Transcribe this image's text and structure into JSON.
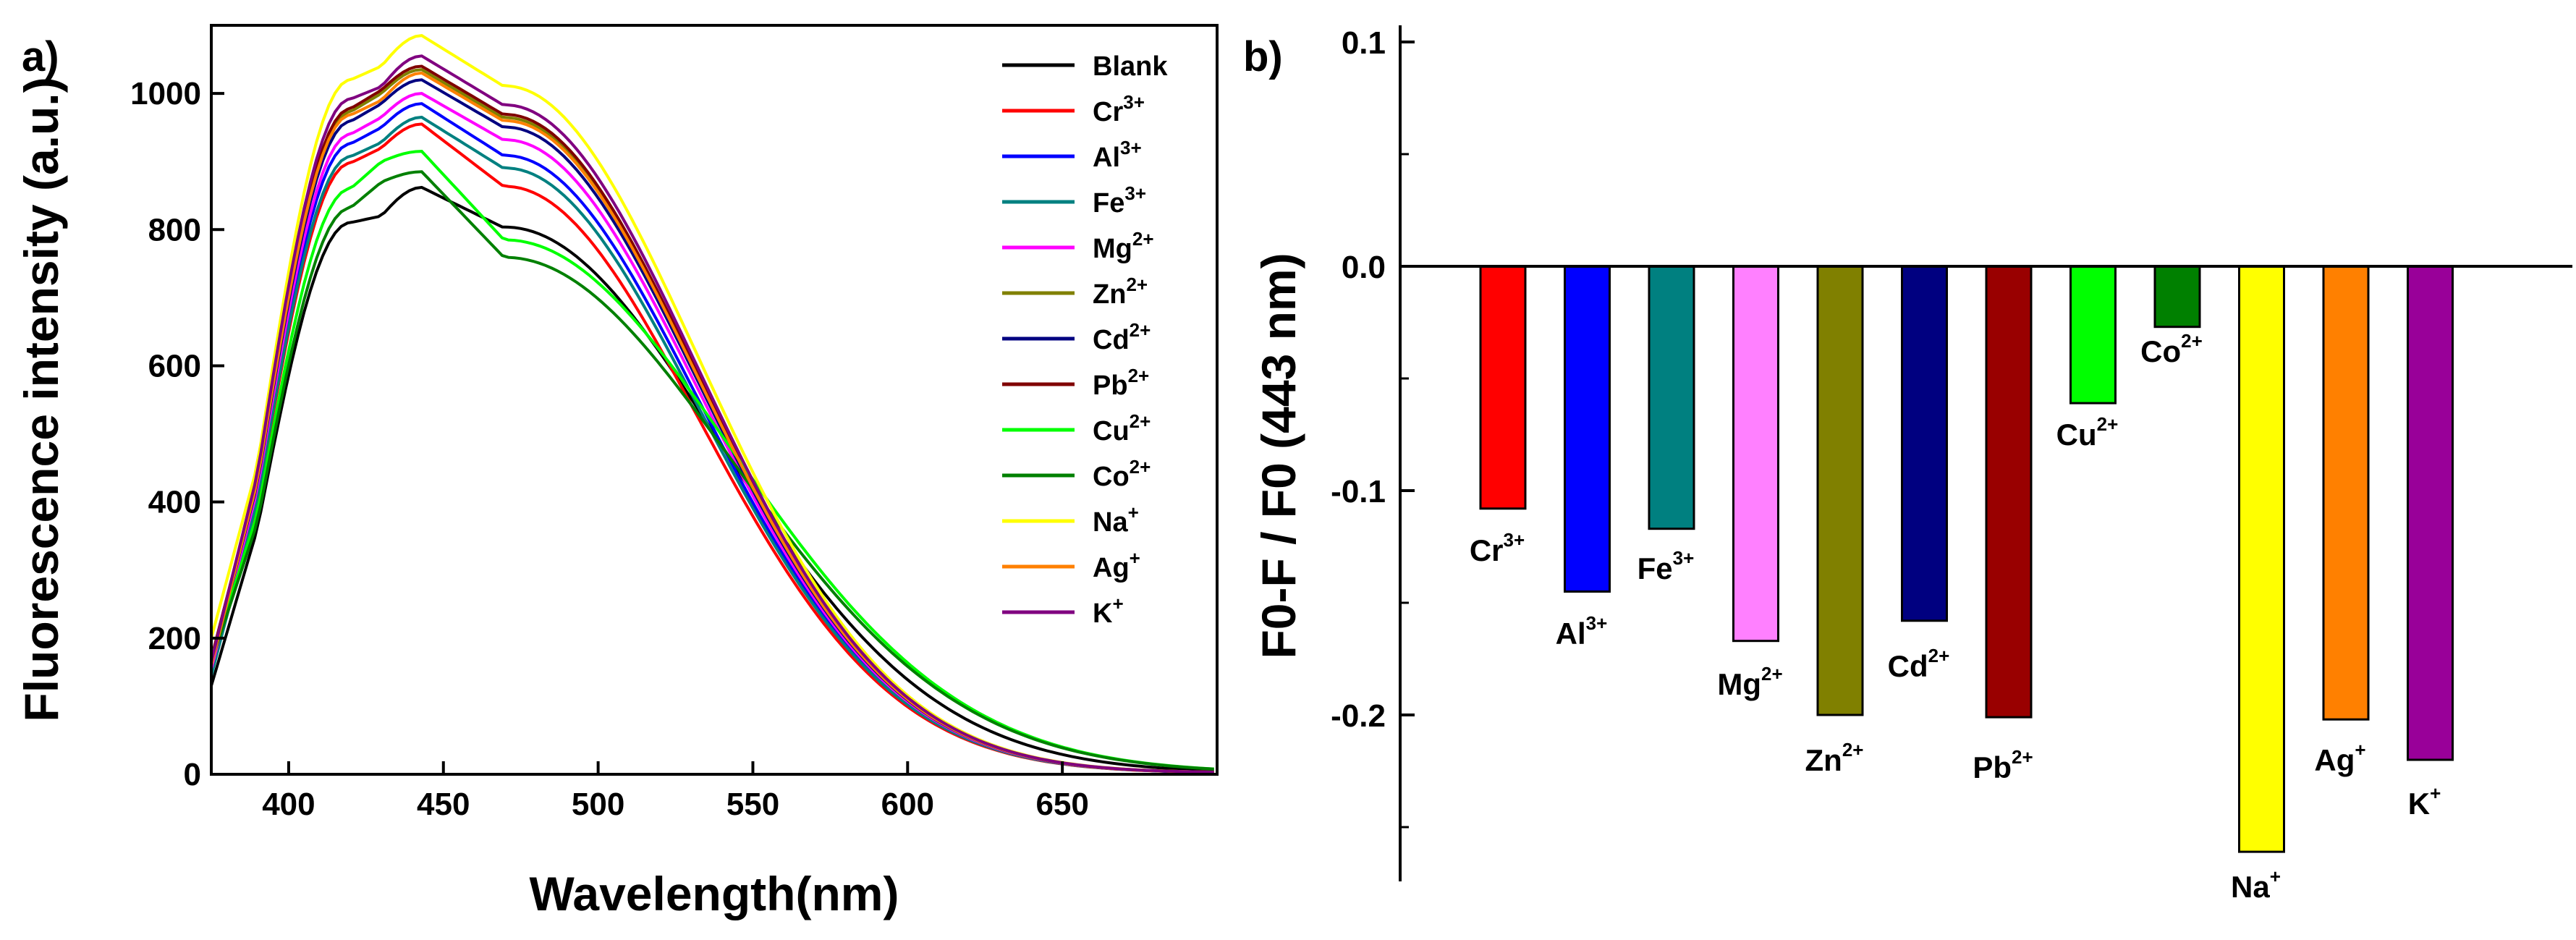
{
  "chart_data": [
    {
      "panel_label": "a)",
      "type": "line",
      "title": "",
      "xlabel": "Wavelength(nm)",
      "ylabel": "Fluorescence intensity (a.u.)",
      "xlim": [
        375,
        700
      ],
      "ylim": [
        0,
        1100
      ],
      "xticks": [
        "400",
        "450",
        "500",
        "550",
        "600",
        "650"
      ],
      "yticks": [
        "0",
        "200",
        "400",
        "600",
        "800",
        "1000"
      ],
      "legend_position": "top-right",
      "series": [
        {
          "name": "Blank",
          "base": "Blank",
          "charge": "",
          "color": "#000000",
          "peak": 862,
          "low": 820,
          "start": 130,
          "hold": 1.0,
          "tail": 0.9
        },
        {
          "name": "Cr3+",
          "base": "Cr",
          "charge": "3+",
          "color": "#ff0000",
          "peak": 955,
          "low": 920,
          "start": 160,
          "hold": 0.97,
          "tail": 1.0
        },
        {
          "name": "Al3+",
          "base": "Al",
          "charge": "3+",
          "color": "#0000ff",
          "peak": 985,
          "low": 950,
          "start": 150,
          "hold": 0.99,
          "tail": 1.0
        },
        {
          "name": "Fe3+",
          "base": "Fe",
          "charge": "3+",
          "color": "#008080",
          "peak": 965,
          "low": 928,
          "start": 145,
          "hold": 0.99,
          "tail": 1.0
        },
        {
          "name": "Mg2+",
          "base": "Mg",
          "charge": "2+",
          "color": "#ff00ff",
          "peak": 1000,
          "low": 965,
          "start": 155,
          "hold": 1.0,
          "tail": 1.0
        },
        {
          "name": "Zn2+",
          "base": "Zn",
          "charge": "2+",
          "color": "#808000",
          "peak": 1035,
          "low": 1000,
          "start": 165,
          "hold": 1.0,
          "tail": 1.0
        },
        {
          "name": "Cd2+",
          "base": "Cd",
          "charge": "2+",
          "color": "#000080",
          "peak": 1020,
          "low": 985,
          "start": 160,
          "hold": 1.0,
          "tail": 1.0
        },
        {
          "name": "Pb2+",
          "base": "Pb",
          "charge": "2+",
          "color": "#800000",
          "peak": 1040,
          "low": 1005,
          "start": 170,
          "hold": 1.0,
          "tail": 1.0
        },
        {
          "name": "Cu2+",
          "base": "Cu",
          "charge": "2+",
          "color": "#00ff00",
          "peak": 915,
          "low": 900,
          "start": 170,
          "hold": 0.92,
          "tail": 0.85
        },
        {
          "name": "Co2+",
          "base": "Co",
          "charge": "2+",
          "color": "#008000",
          "peak": 885,
          "low": 870,
          "start": 165,
          "hold": 0.92,
          "tail": 0.85
        },
        {
          "name": "Na+",
          "base": "Na",
          "charge": "+",
          "color": "#ffff00",
          "peak": 1085,
          "low": 1040,
          "start": 200,
          "hold": 1.0,
          "tail": 1.0
        },
        {
          "name": "Ag+",
          "base": "Ag",
          "charge": "+",
          "color": "#ff8000",
          "peak": 1030,
          "low": 990,
          "start": 160,
          "hold": 1.0,
          "tail": 1.0
        },
        {
          "name": "K+",
          "base": "K",
          "charge": "+",
          "color": "#800080",
          "peak": 1055,
          "low": 1010,
          "start": 165,
          "hold": 1.0,
          "tail": 1.0
        }
      ]
    },
    {
      "panel_label": "b)",
      "type": "bar",
      "title": "",
      "xlabel": "",
      "ylabel": "F0-F / F0 (443 nm)",
      "ylim": [
        -0.27,
        0.1
      ],
      "yticks": [
        "0.1",
        "0.0",
        "-0.1",
        "-0.2"
      ],
      "categories": [
        "Cr3+",
        "Al3+",
        "Fe3+",
        "Mg2+",
        "Zn2+",
        "Cd2+",
        "Pb2+",
        "Cu2+",
        "Co2+",
        "Na+",
        "Ag+",
        "K+"
      ],
      "values": [
        -0.108,
        -0.145,
        -0.117,
        -0.167,
        -0.2,
        -0.158,
        -0.201,
        -0.061,
        -0.027,
        -0.261,
        -0.202,
        -0.22
      ],
      "bars": [
        {
          "base": "Cr",
          "charge": "3+",
          "value": -0.108,
          "color": "#ff0000"
        },
        {
          "base": "Al",
          "charge": "3+",
          "value": -0.145,
          "color": "#0000ff"
        },
        {
          "base": "Fe",
          "charge": "3+",
          "value": -0.117,
          "color": "#008080"
        },
        {
          "base": "Mg",
          "charge": "2+",
          "value": -0.167,
          "color": "#ff80ff"
        },
        {
          "base": "Zn",
          "charge": "2+",
          "value": -0.2,
          "color": "#808000"
        },
        {
          "base": "Cd",
          "charge": "2+",
          "value": -0.158,
          "color": "#000080"
        },
        {
          "base": "Pb",
          "charge": "2+",
          "value": -0.201,
          "color": "#990000"
        },
        {
          "base": "Cu",
          "charge": "2+",
          "value": -0.061,
          "color": "#00ff00"
        },
        {
          "base": "Co",
          "charge": "2+",
          "value": -0.027,
          "color": "#008000"
        },
        {
          "base": "Na",
          "charge": "+",
          "value": -0.261,
          "color": "#ffff00"
        },
        {
          "base": "Ag",
          "charge": "+",
          "value": -0.202,
          "color": "#ff8000"
        },
        {
          "base": "K",
          "charge": "+",
          "value": -0.22,
          "color": "#990099"
        }
      ]
    }
  ]
}
